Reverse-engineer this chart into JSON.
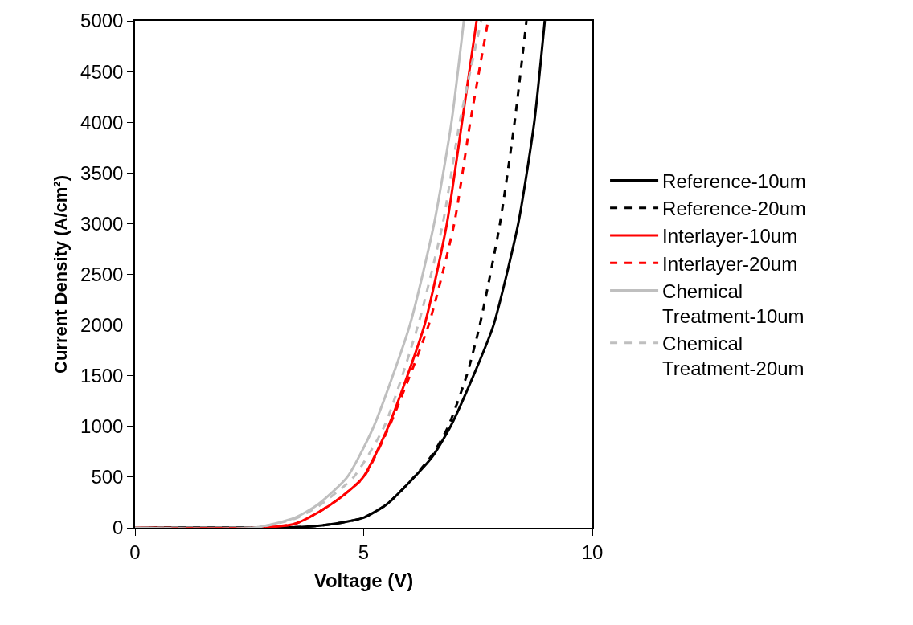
{
  "chart_data": {
    "type": "line",
    "xlabel": "Voltage (V)",
    "ylabel": "Current Density (A/cm²)",
    "xlim": [
      0,
      10
    ],
    "xticks": [
      0,
      5,
      10
    ],
    "ylim": [
      0,
      5000
    ],
    "yticks": [
      0,
      500,
      1000,
      1500,
      2000,
      2500,
      3000,
      3500,
      4000,
      4500,
      5000
    ],
    "grid": false,
    "legend": "right",
    "marker": "none",
    "series": [
      {
        "name": "Reference-10um",
        "color": "#000000",
        "line_style": "solid",
        "x": [
          0,
          3.0,
          3.5,
          4.0,
          4.5,
          5.0,
          5.5,
          6.0,
          6.5,
          6.9,
          7.4,
          7.84,
          8.38,
          8.73,
          8.96
        ],
        "values": [
          0,
          0,
          5,
          20,
          50,
          100,
          230,
          450,
          700,
          1000,
          1500,
          2000,
          3000,
          4000,
          5000
        ]
      },
      {
        "name": "Reference-20um",
        "color": "#000000",
        "line_style": "dashed",
        "x": [
          0,
          3.0,
          3.5,
          4.0,
          4.5,
          5.0,
          5.5,
          6.0,
          6.5,
          6.85,
          7.25,
          7.54,
          7.98,
          8.3,
          8.56
        ],
        "values": [
          0,
          0,
          5,
          20,
          50,
          100,
          230,
          450,
          720,
          1000,
          1500,
          2000,
          3000,
          4000,
          5000
        ]
      },
      {
        "name": "Interlayer-10um",
        "color": "#ff0000",
        "line_style": "solid",
        "x": [
          0,
          2.7,
          3.5,
          4.0,
          4.5,
          4.99,
          5.54,
          6.33,
          6.82,
          7.15,
          7.47
        ],
        "values": [
          0,
          0,
          40,
          150,
          300,
          500,
          1000,
          2000,
          3000,
          4000,
          5000
        ]
      },
      {
        "name": "Interlayer-20um",
        "color": "#ff0000",
        "line_style": "dashed",
        "x": [
          0,
          2.7,
          3.5,
          4.0,
          4.5,
          5.0,
          5.56,
          6.42,
          6.98,
          7.33,
          7.72
        ],
        "values": [
          0,
          0,
          40,
          150,
          300,
          500,
          1000,
          2000,
          3000,
          4000,
          5000
        ]
      },
      {
        "name": "Chemical Treatment-10um",
        "color": "#bfbfbf",
        "line_style": "solid",
        "x": [
          0,
          2.6,
          3.5,
          4.0,
          4.64,
          5.22,
          6.01,
          6.54,
          6.92,
          7.19
        ],
        "values": [
          0,
          0,
          100,
          230,
          500,
          1000,
          2000,
          3000,
          4000,
          5000
        ]
      },
      {
        "name": "Chemical Treatment-20um",
        "color": "#bfbfbf",
        "line_style": "dashed",
        "x": [
          0,
          2.6,
          3.5,
          4.0,
          4.78,
          5.45,
          6.19,
          6.73,
          7.1,
          7.57
        ],
        "values": [
          0,
          0,
          90,
          210,
          500,
          1000,
          2000,
          3000,
          4000,
          5000
        ]
      }
    ]
  }
}
